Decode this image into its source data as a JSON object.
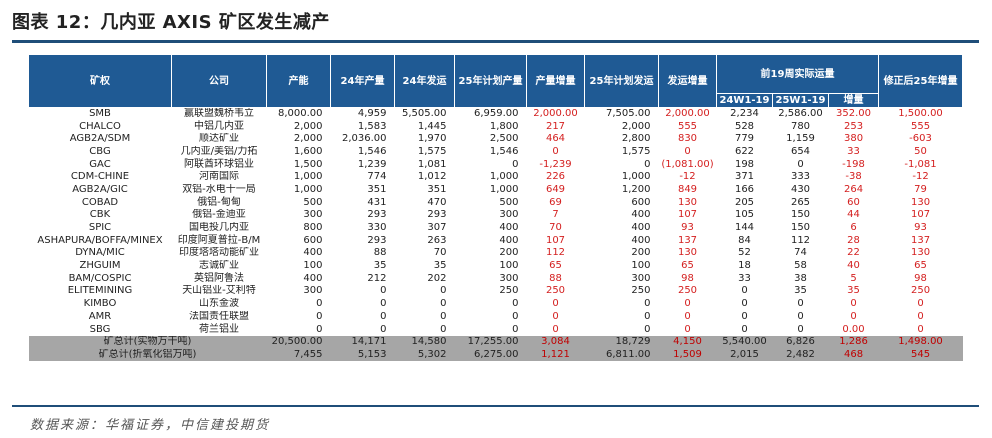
{
  "title": "图表 12：几内亚 AXIS 矿区发生减产",
  "source": "数据来源：华福证券，中信建投期货",
  "header": {
    "mine": "矿权",
    "company": "公司",
    "capacity": "产能",
    "prod24": "24年产量",
    "ship24": "24年发运",
    "plan_prod25": "25年计划产量",
    "prod_inc": "产量增量",
    "plan_ship25": "25年计划发运",
    "ship_inc": "发运增量",
    "weekly_group": "前19周实际运量",
    "w24": "24W1-19",
    "w25": "25W1-19",
    "w_inc": "增量",
    "revised": "修正后25年增量"
  },
  "rows": [
    {
      "c": [
        "SMB",
        "赢联盟魏桥韦立",
        "8,000.00",
        "4,959",
        "5,505.00",
        "6,959.00",
        "2,000.00",
        "7,505.00",
        "2,000.00",
        "2,234",
        "2,586.00",
        "352.00",
        "1,500.00"
      ]
    },
    {
      "c": [
        "CHALCO",
        "中铝几内亚",
        "2,000",
        "1,583",
        "1,445",
        "1,800",
        "217",
        "2,000",
        "555",
        "528",
        "780",
        "253",
        "555"
      ]
    },
    {
      "c": [
        "AGB2A/SDM",
        "顺达矿业",
        "2,000",
        "2,036.00",
        "1,970",
        "2,500",
        "464",
        "2,800",
        "830",
        "779",
        "1,159",
        "380",
        "-603"
      ]
    },
    {
      "c": [
        "CBG",
        "几内亚/美铝/力拓",
        "1,600",
        "1,546",
        "1,575",
        "1,546",
        "0",
        "1,575",
        "0",
        "622",
        "654",
        "33",
        "50"
      ]
    },
    {
      "c": [
        "GAC",
        "阿联酋环球铝业",
        "1,500",
        "1,239",
        "1,081",
        "0",
        "-1,239",
        "0",
        "(1,081.00)",
        "198",
        "0",
        "-198",
        "-1,081"
      ]
    },
    {
      "c": [
        "CDM-CHINE",
        "河南国际",
        "1,000",
        "774",
        "1,012",
        "1,000",
        "226",
        "1,000",
        "-12",
        "371",
        "333",
        "-38",
        "-12"
      ]
    },
    {
      "c": [
        "AGB2A/GIC",
        "双铝-水电十一局",
        "1,000",
        "351",
        "351",
        "1,000",
        "649",
        "1,200",
        "849",
        "166",
        "430",
        "264",
        "79"
      ]
    },
    {
      "c": [
        "COBAD",
        "俄铝-甸甸",
        "500",
        "431",
        "470",
        "500",
        "69",
        "600",
        "130",
        "205",
        "265",
        "60",
        "130"
      ]
    },
    {
      "c": [
        "CBK",
        "俄铝-金迪亚",
        "300",
        "293",
        "293",
        "300",
        "7",
        "400",
        "107",
        "105",
        "150",
        "44",
        "107"
      ]
    },
    {
      "c": [
        "SPIC",
        "国电投几内亚",
        "800",
        "330",
        "307",
        "400",
        "70",
        "400",
        "93",
        "144",
        "150",
        "6",
        "93"
      ]
    },
    {
      "c": [
        "ASHAPURA/BOFFA/MINEX",
        "印度阿夏普拉-B/M",
        "600",
        "293",
        "263",
        "400",
        "107",
        "400",
        "137",
        "84",
        "112",
        "28",
        "137"
      ]
    },
    {
      "c": [
        "DYNA/MIC",
        "印度塔塔动能矿业",
        "400",
        "88",
        "70",
        "200",
        "112",
        "200",
        "130",
        "52",
        "74",
        "22",
        "130"
      ]
    },
    {
      "c": [
        "ZHGUIM",
        "志诚矿业",
        "100",
        "35",
        "35",
        "100",
        "65",
        "100",
        "65",
        "18",
        "58",
        "40",
        "65"
      ]
    },
    {
      "c": [
        "BAM/COSPIC",
        "英铝阿鲁法",
        "400",
        "212",
        "202",
        "300",
        "88",
        "300",
        "98",
        "33",
        "38",
        "5",
        "98"
      ]
    },
    {
      "c": [
        "ELITEMINING",
        "天山铝业-艾利特",
        "300",
        "0",
        "0",
        "250",
        "250",
        "250",
        "250",
        "0",
        "35",
        "35",
        "250"
      ]
    },
    {
      "c": [
        "KIMBO",
        "山东金波",
        "0",
        "0",
        "0",
        "0",
        "0",
        "0",
        "0",
        "0",
        "0",
        "0",
        "0"
      ]
    },
    {
      "c": [
        "AMR",
        "法国责任联盟",
        "0",
        "0",
        "0",
        "0",
        "0",
        "0",
        "0",
        "0",
        "0",
        "0",
        "0"
      ]
    },
    {
      "c": [
        "SBG",
        "荷兰铝业",
        "0",
        "0",
        "0",
        "0",
        "0",
        "0",
        "0",
        "0",
        "0",
        "0.00",
        "0"
      ]
    }
  ],
  "totals": [
    {
      "label": "矿总计(实物万干吨)",
      "c": [
        "20,500.00",
        "14,171",
        "14,580",
        "17,255.00",
        "3,084",
        "18,729",
        "4,150",
        "5,540.00",
        "6,826",
        "1,286",
        "1,498.00"
      ]
    },
    {
      "label": "矿总计(折氧化铝万吨)",
      "c": [
        "7,455",
        "5,153",
        "5,302",
        "6,275.00",
        "1,121",
        "6,811.00",
        "1,509",
        "2,015",
        "2,482",
        "468",
        "545"
      ]
    }
  ],
  "colors": {
    "header_bg": "#1f5a94",
    "red": "#d42020",
    "total_bg": "#a6a6a6",
    "rule": "#1f4e79"
  }
}
